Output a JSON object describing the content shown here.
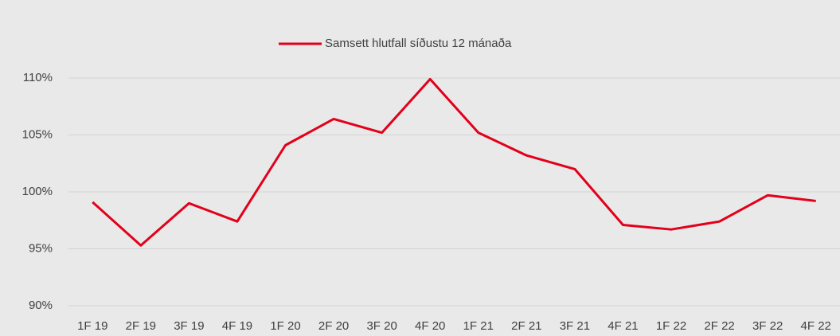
{
  "chart_data": {
    "type": "line",
    "categories": [
      "1F 19",
      "2F 19",
      "3F 19",
      "4F 19",
      "1F 20",
      "2F 20",
      "3F 20",
      "4F 20",
      "1F 21",
      "2F 21",
      "3F 21",
      "4F 21",
      "1F 22",
      "2F 22",
      "3F 22",
      "4F 22"
    ],
    "series": [
      {
        "name": "Samsett hlutfall síðustu 12 mánaða",
        "color": "#e2001a",
        "values": [
          99.1,
          95.3,
          99.0,
          97.4,
          104.1,
          106.4,
          105.2,
          109.9,
          105.2,
          103.2,
          102.0,
          97.1,
          96.7,
          97.4,
          99.7,
          99.2
        ]
      }
    ],
    "ylim": [
      90,
      110
    ],
    "yticks": [
      {
        "value": 90,
        "label": "90%"
      },
      {
        "value": 95,
        "label": "95%"
      },
      {
        "value": 100,
        "label": "100%"
      },
      {
        "value": 105,
        "label": "105%"
      },
      {
        "value": 110,
        "label": "110%"
      }
    ],
    "grid": true,
    "legend": "top"
  }
}
